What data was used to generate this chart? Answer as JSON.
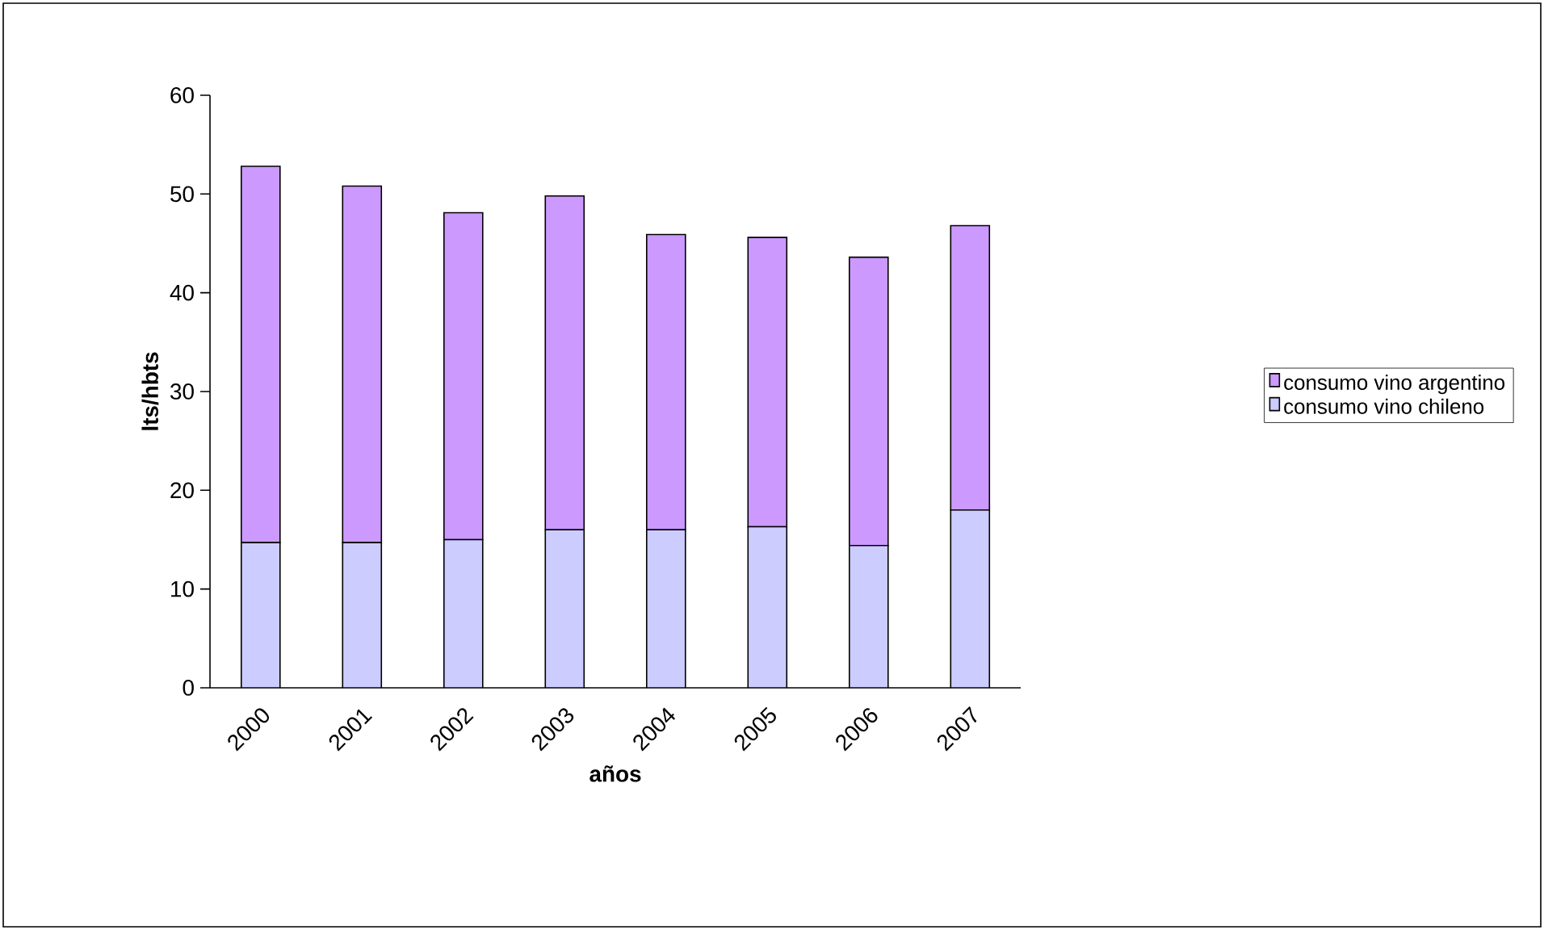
{
  "chart_data": {
    "type": "bar",
    "stacked": true,
    "xlabel": "años",
    "ylabel": "lts/hbts",
    "categories": [
      "2000",
      "2001",
      "2002",
      "2003",
      "2004",
      "2005",
      "2006",
      "2007"
    ],
    "series": [
      {
        "name": "consumo vino chileno",
        "color": "#ccccff",
        "values": [
          14.7,
          14.7,
          15.0,
          16.0,
          16.0,
          16.3,
          14.4,
          18.0
        ]
      },
      {
        "name": "consumo vino argentino",
        "color": "#cc99ff",
        "values": [
          38.1,
          36.1,
          33.1,
          33.8,
          29.9,
          29.3,
          29.2,
          28.8
        ]
      }
    ],
    "ylim": [
      0,
      60
    ],
    "yticks": [
      0,
      10,
      20,
      30,
      40,
      50,
      60
    ],
    "grid": false,
    "legend": "right"
  }
}
